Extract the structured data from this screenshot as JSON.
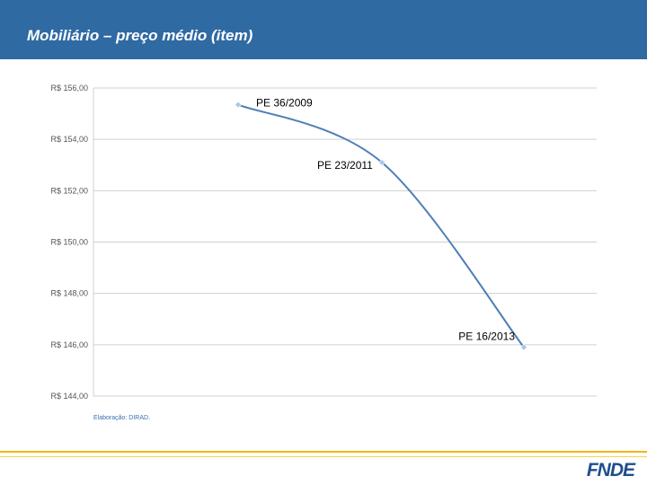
{
  "slide": {
    "title": "Mobiliário – preço médio (item)",
    "source_note": "Elaboração: DIRAD.",
    "logo_text": "FNDE"
  },
  "colors": {
    "header_bg": "#2f6aa3",
    "line": "#4f7fb4",
    "marker": "#a8c8e8",
    "grid": "#d0d0d0",
    "footer_accent": "#f2b705",
    "logo": "#1f4e8c"
  },
  "chart_data": {
    "type": "line",
    "ylim": [
      144,
      156
    ],
    "y_ticks": [
      156,
      154,
      152,
      150,
      148,
      146,
      144
    ],
    "y_tick_labels": [
      "R$ 156,00",
      "R$ 154,00",
      "R$ 152,00",
      "R$ 150,00",
      "R$ 148,00",
      "R$ 146,00",
      "R$ 144,00"
    ],
    "grid": true,
    "points": [
      {
        "label": "PE 36/2009",
        "value": 155.35
      },
      {
        "label": "PE 23/2011",
        "value": 153.1
      },
      {
        "label": "PE 16/2013",
        "value": 145.9
      }
    ]
  }
}
